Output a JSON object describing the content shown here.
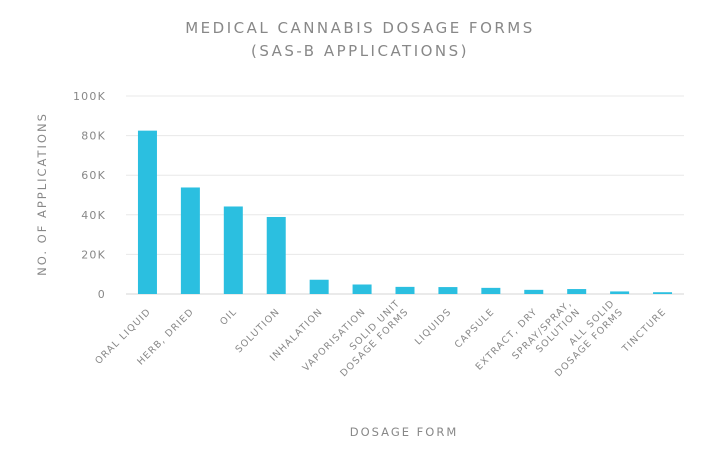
{
  "chart_data": {
    "type": "bar",
    "title": "Medical Cannabis Dosage Forms",
    "subtitle": "(SAS-B Applications)",
    "xlabel": "Dosage Form",
    "ylabel": "No. of Applications",
    "ylim": [
      0,
      100000
    ],
    "yticks": [
      0,
      20000,
      40000,
      60000,
      80000,
      100000
    ],
    "ytick_labels": [
      "0",
      "20K",
      "40K",
      "60K",
      "80K",
      "100K"
    ],
    "grid": true,
    "legend": "none",
    "bar_color": "#2bbfe0",
    "categories": [
      "Oral Liquid",
      "Herb, Dried",
      "Oil",
      "Solution",
      "Inhalation",
      "Vaporisation",
      "Solid Unit Dosage Forms",
      "Liquids",
      "Capsule",
      "Extract, Dry",
      "Spray/Spray, Solution",
      "All Solid Dosage Forms",
      "Tincture"
    ],
    "category_label_lines": [
      [
        "Oral Liquid"
      ],
      [
        "Herb, Dried"
      ],
      [
        "Oil"
      ],
      [
        "Solution"
      ],
      [
        "Inhalation"
      ],
      [
        "Vaporisation"
      ],
      [
        "Solid Unit",
        "Dosage Forms"
      ],
      [
        "Liquids"
      ],
      [
        "Capsule"
      ],
      [
        "Extract, Dry"
      ],
      [
        "Spray/Spray,",
        "Solution"
      ],
      [
        "All Solid",
        "Dosage Forms"
      ],
      [
        "Tincture"
      ]
    ],
    "values": [
      82500,
      53800,
      44200,
      38900,
      7200,
      4800,
      3600,
      3500,
      3100,
      2100,
      2500,
      1300,
      900
    ]
  }
}
